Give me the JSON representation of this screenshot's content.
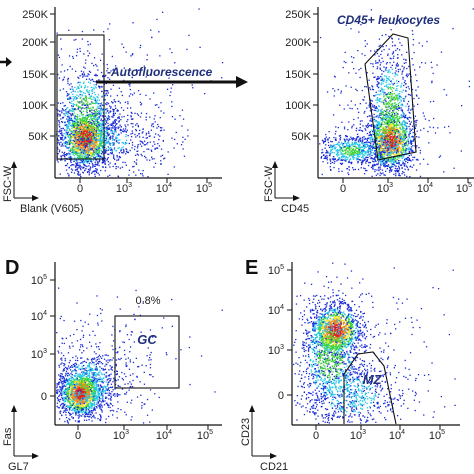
{
  "chart_data": [
    {
      "type": "scatter",
      "panel": "",
      "xlabel": "Blank (V605)",
      "ylabel": "FSC-W",
      "x_ticks": [
        "0",
        "10^3",
        "10^4",
        "10^5"
      ],
      "y_ticks": [
        "50K",
        "100K",
        "150K",
        "200K",
        "250K"
      ],
      "gate": {
        "label": "-Autofluorescence"
      },
      "density_center": {
        "x": "0",
        "y": "40K"
      }
    },
    {
      "type": "scatter",
      "panel": "",
      "xlabel": "CD45",
      "ylabel": "FSC-W",
      "x_ticks": [
        "0",
        "10^3",
        "10^4",
        "10^5"
      ],
      "y_ticks": [
        "50K",
        "100K",
        "150K",
        "200K",
        "250K"
      ],
      "gate": {
        "label": "CD45+ leukocytes"
      },
      "density_center": {
        "x": "10^3",
        "y": "40K"
      }
    },
    {
      "type": "scatter",
      "panel": "D",
      "xlabel": "GL7",
      "ylabel": "Fas",
      "x_ticks": [
        "0",
        "10^3",
        "10^4",
        "10^5"
      ],
      "y_ticks": [
        "0",
        "10^3",
        "10^4",
        "10^5"
      ],
      "gate": {
        "label": "GC",
        "percent": "0.8%"
      },
      "density_center": {
        "x": "0",
        "y": "0"
      }
    },
    {
      "type": "scatter",
      "panel": "E",
      "xlabel": "CD21",
      "ylabel": "CD23",
      "x_ticks": [
        "0",
        "10^3",
        "10^4",
        "10^5"
      ],
      "y_ticks": [
        "0",
        "10^3",
        "10^4",
        "10^5"
      ],
      "gate": {
        "label": "MZ"
      },
      "density_center": {
        "x": "10^3",
        "y": "10^4"
      }
    }
  ],
  "flow_arrow": {
    "label": "-Autofluorescence"
  },
  "colors": {
    "low": "#1a2bd6",
    "mid1": "#23c8e8",
    "mid2": "#3fd23a",
    "mid3": "#f2e21c",
    "high": "#e8201a",
    "gate_text": "#1f2f7a"
  }
}
